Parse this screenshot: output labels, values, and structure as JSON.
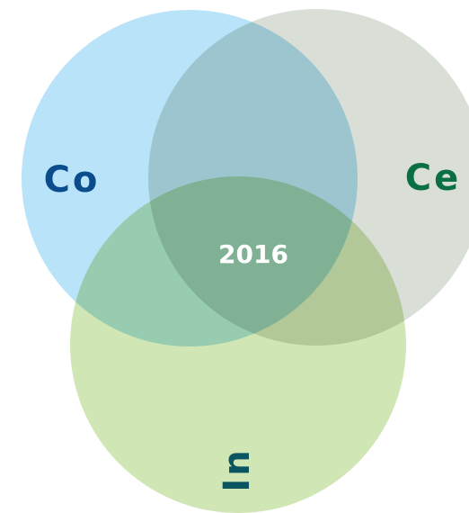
{
  "sets": [
    {
      "label": "Co"
    },
    {
      "label": "Ce"
    },
    {
      "label": "In"
    }
  ],
  "center": {
    "label": "2016"
  }
}
